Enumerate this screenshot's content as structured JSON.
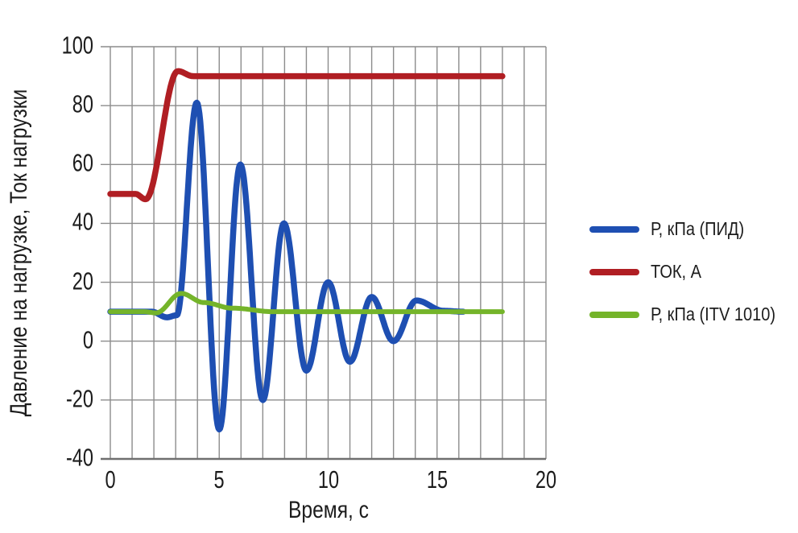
{
  "figure": {
    "background": "#ffffff",
    "text_color": "#1c1c1c"
  },
  "chart_data": {
    "type": "line",
    "title": "",
    "xlabel": "Время, с",
    "ylabel": "Давление на нагрузке, Ток нагрузки",
    "xlim": [
      0,
      20
    ],
    "ylim": [
      -40,
      100
    ],
    "x_ticks": [
      0,
      5,
      10,
      15,
      20
    ],
    "y_ticks": [
      100,
      80,
      60,
      40,
      20,
      0,
      -20,
      -40
    ],
    "grid": {
      "on": true,
      "x_step": 1,
      "y_step": 20,
      "color": "#8c8c8c",
      "axis_color": "#6f6f6f"
    },
    "legend_position": "right-outside",
    "interpolation": "cosine-ease",
    "series": [
      {
        "name": "Р, кПа (ПИД)",
        "color": "#1e4fb2",
        "stroke_width": 7.5,
        "points": [
          [
            0,
            10
          ],
          [
            1.9,
            10
          ],
          [
            2.6,
            8.1
          ],
          [
            3.05,
            8.8
          ],
          [
            3.97,
            81
          ],
          [
            5.0,
            -30
          ],
          [
            5.97,
            60
          ],
          [
            7.0,
            -20
          ],
          [
            7.97,
            40
          ],
          [
            9.0,
            -10
          ],
          [
            10.0,
            20
          ],
          [
            11.0,
            -7
          ],
          [
            12.0,
            15
          ],
          [
            13.0,
            0
          ],
          [
            14.05,
            13.8
          ],
          [
            15.3,
            10.3
          ],
          [
            16.2,
            10
          ]
        ]
      },
      {
        "name": "ТОК, А",
        "color": "#b01e23",
        "stroke_width": 7.5,
        "points": [
          [
            0,
            50
          ],
          [
            1.15,
            50
          ],
          [
            1.62,
            48.2
          ],
          [
            3.1,
            91.7
          ],
          [
            3.8,
            90
          ],
          [
            18,
            90
          ]
        ]
      },
      {
        "name": "Р, кПа (ITV 1010)",
        "color": "#74b42a",
        "stroke_width": 6,
        "points": [
          [
            0,
            10
          ],
          [
            1.55,
            10
          ],
          [
            2.1,
            9.6
          ],
          [
            3.25,
            16.2
          ],
          [
            4.3,
            13.1
          ],
          [
            5.6,
            11.2
          ],
          [
            7.5,
            10
          ],
          [
            18,
            10
          ]
        ]
      }
    ]
  }
}
